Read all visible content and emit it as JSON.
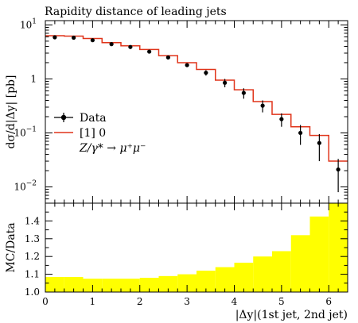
{
  "chart_data": [
    {
      "type": "line",
      "panel": "main",
      "title": "Rapidity distance of leading jets",
      "xlabel": "",
      "ylabel": "dσ/d|Δy| [pb]",
      "yscale": "log",
      "ylim": [
        0.005,
        12
      ],
      "xlim": [
        0,
        6.4
      ],
      "yticks": [
        {
          "value": 10,
          "label": "10",
          "sup": "1"
        },
        {
          "value": 1,
          "label": "1",
          "sup": ""
        },
        {
          "value": 0.1,
          "label": "10",
          "sup": "−1"
        },
        {
          "value": 0.01,
          "label": "10",
          "sup": "−2"
        }
      ],
      "legend": {
        "position": "middle-left",
        "entries": [
          "Data",
          "[1] 0"
        ],
        "process": "Z/γ* → μ⁺μ⁻"
      },
      "series": [
        {
          "name": "Data",
          "style": "points-with-errorbars",
          "color": "#000000",
          "x": [
            0.2,
            0.6,
            1.0,
            1.4,
            1.8,
            2.2,
            2.6,
            3.0,
            3.4,
            3.8,
            4.2,
            4.6,
            5.0,
            5.4,
            5.8,
            6.2
          ],
          "y": [
            5.9,
            5.8,
            5.2,
            4.4,
            3.9,
            3.2,
            2.5,
            1.8,
            1.3,
            0.85,
            0.55,
            0.32,
            0.18,
            0.1,
            0.065,
            0.021
          ],
          "yerr_low": [
            0.3,
            0.3,
            0.25,
            0.2,
            0.2,
            0.18,
            0.15,
            0.12,
            0.15,
            0.15,
            0.12,
            0.08,
            0.05,
            0.04,
            0.035,
            0.013
          ],
          "yerr_high": [
            0.3,
            0.3,
            0.25,
            0.2,
            0.2,
            0.18,
            0.15,
            0.12,
            0.15,
            0.15,
            0.12,
            0.08,
            0.05,
            0.04,
            0.03,
            0.012
          ]
        },
        {
          "name": "[1] 0",
          "style": "histogram-step",
          "color": "#e0341a",
          "bin_edges": [
            0,
            0.4,
            0.8,
            1.2,
            1.6,
            2.0,
            2.4,
            2.8,
            3.2,
            3.6,
            4.0,
            4.4,
            4.8,
            5.2,
            5.6,
            6.0,
            6.4
          ],
          "values": [
            6.3,
            6.2,
            5.6,
            4.7,
            4.1,
            3.5,
            2.7,
            2.0,
            1.5,
            0.95,
            0.63,
            0.38,
            0.22,
            0.13,
            0.09,
            0.03
          ]
        }
      ]
    },
    {
      "type": "bar",
      "panel": "ratio",
      "xlabel": "|Δy|(1st jet, 2nd jet)",
      "ylabel": "MC/Data",
      "ylim": [
        1.0,
        1.5
      ],
      "xlim": [
        0,
        6.4
      ],
      "xticks": [
        0,
        1,
        2,
        3,
        4,
        5,
        6
      ],
      "yticks": [
        1.0,
        1.1,
        1.2,
        1.3,
        1.4
      ],
      "color": "#ffff00",
      "bin_edges": [
        0,
        0.4,
        0.8,
        1.2,
        1.6,
        2.0,
        2.4,
        2.8,
        3.2,
        3.6,
        4.0,
        4.4,
        4.8,
        5.2,
        5.6,
        6.0,
        6.4
      ],
      "values": [
        1.085,
        1.085,
        1.075,
        1.075,
        1.075,
        1.08,
        1.09,
        1.1,
        1.12,
        1.14,
        1.165,
        1.2,
        1.23,
        1.32,
        1.425,
        1.5
      ]
    }
  ]
}
